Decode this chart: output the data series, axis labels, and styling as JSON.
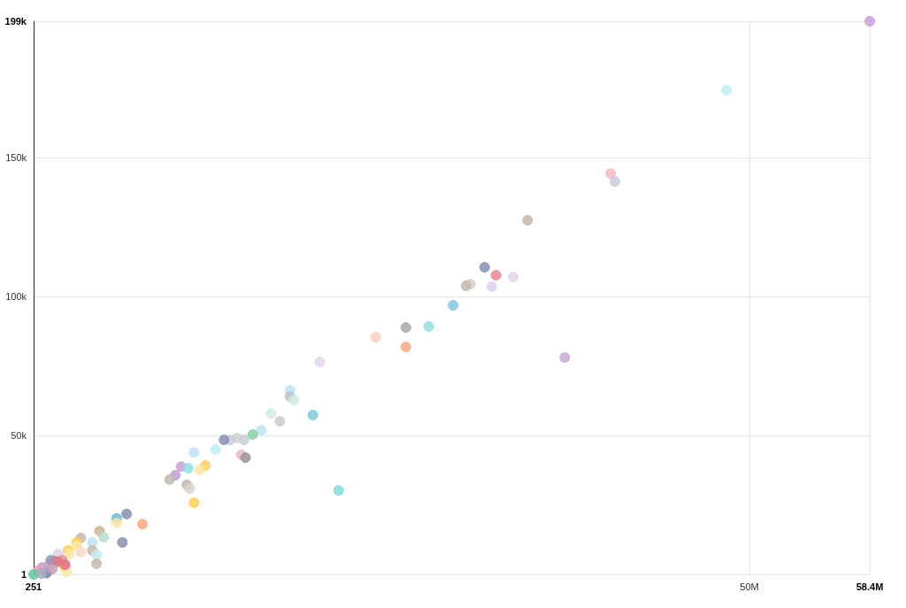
{
  "chart_data": {
    "type": "scatter",
    "marker": "circle",
    "grid": true,
    "xlim": [
      251,
      58400000
    ],
    "ylim": [
      1,
      199000
    ],
    "xticks": [
      251,
      {
        "value": 50000000,
        "label": "50M"
      },
      {
        "value": 58400000,
        "label": "58.4M"
      }
    ],
    "yticks": [
      1,
      {
        "value": 50000,
        "label": "50k"
      },
      {
        "value": 100000,
        "label": "100k"
      },
      {
        "value": 150000,
        "label": "150k"
      },
      {
        "value": 199000,
        "label": "199k"
      }
    ],
    "x": [
      58400000,
      48400000,
      40300000,
      40600000,
      34500000,
      31500000,
      32300000,
      33500000,
      30500000,
      30200000,
      32000000,
      29300000,
      26000000,
      27600000,
      23900000,
      26000000,
      37100000,
      20000000,
      17900000,
      17900000,
      18200000,
      16600000,
      19500000,
      17200000,
      15900000,
      15300000,
      14700000,
      14200000,
      13700000,
      13300000,
      12700000,
      11200000,
      14500000,
      14800000,
      12000000,
      11600000,
      10300000,
      10800000,
      9900000,
      9500000,
      10700000,
      10900000,
      11200000,
      21300000,
      7600000,
      6500000,
      5800000,
      5800000,
      6200000,
      4600000,
      4900000,
      4100000,
      4100000,
      4400000,
      4400000,
      3300000,
      3000000,
      3000000,
      3300000,
      2400000,
      2500000,
      1700000,
      2000000,
      1500000,
      2200000,
      2300000,
      1100000,
      1200000,
      900000,
      600000,
      300000,
      251,
      560000,
      2200000,
      1700000,
      1300000
    ],
    "values": [
      199000,
      174200,
      144200,
      141400,
      127400,
      110500,
      107600,
      107000,
      104400,
      103800,
      103500,
      96800,
      88800,
      89200,
      85300,
      81800,
      78000,
      76400,
      66200,
      64000,
      62700,
      57900,
      57300,
      55100,
      51900,
      50300,
      48400,
      49000,
      48400,
      48400,
      44900,
      43900,
      43000,
      42000,
      39200,
      37600,
      38800,
      38200,
      35700,
      34100,
      32200,
      30900,
      25800,
      30200,
      18100,
      21700,
      20100,
      18500,
      11500,
      15600,
      13400,
      11500,
      8600,
      7000,
      3800,
      13100,
      11500,
      10200,
      8000,
      8600,
      7300,
      7300,
      5100,
      4800,
      2500,
      1000,
      3500,
      5100,
      500,
      2500,
      1300,
      1,
      300,
      3500,
      4500,
      1900
    ],
    "colors": [
      "#c9a0d8",
      "#bfeef0",
      "#f5b8c0",
      "#c8ccd8",
      "#c8b8a8",
      "#8890b0",
      "#e88890",
      "#e4d4ec",
      "#d8d0c8",
      "#c4b8ac",
      "#e0d0ec",
      "#80c8e0",
      "#a8a8a8",
      "#90e0e0",
      "#fcd0c0",
      "#fca880",
      "#c8a8d8",
      "#e4d4ec",
      "#c0e4f4",
      "#c0c4d0",
      "#cceedd",
      "#cceedd",
      "#80c8e0",
      "#cccccc",
      "#c0e4f4",
      "#88d0a8",
      "#c8ccd8",
      "#d0d0d0",
      "#c8ccd8",
      "#8890b0",
      "#bfeef0",
      "#c0e4f4",
      "#f0b8c0",
      "#989898",
      "#fcd060",
      "#fce8a8",
      "#c8a0d8",
      "#90e0e0",
      "#c0a0d8",
      "#c4b8ac",
      "#c4b8ac",
      "#ddd4cc",
      "#fcd050",
      "#80dcdc",
      "#fca880",
      "#8890b0",
      "#60c0d8",
      "#fce8a8",
      "#8890b0",
      "#c8b890",
      "#b8dcd0",
      "#c0e4f4",
      "#c4b8ac",
      "#bfeef0",
      "#c4b8ac",
      "#c4b8ac",
      "#fcd050",
      "#fce8a8",
      "#fcd8c8",
      "#fcd050",
      "#fce8a8",
      "#e0d0ec",
      "#e890a0",
      "#e07888",
      "#fcd050",
      "#fce8a8",
      "#f0a0b0",
      "#9098b8",
      "#7080a8",
      "#c0a0d0",
      "#f0a0b0",
      "#60c8a0",
      "#a0b0c0",
      "#e07080",
      "#e07888",
      "#c8a0b8"
    ]
  }
}
